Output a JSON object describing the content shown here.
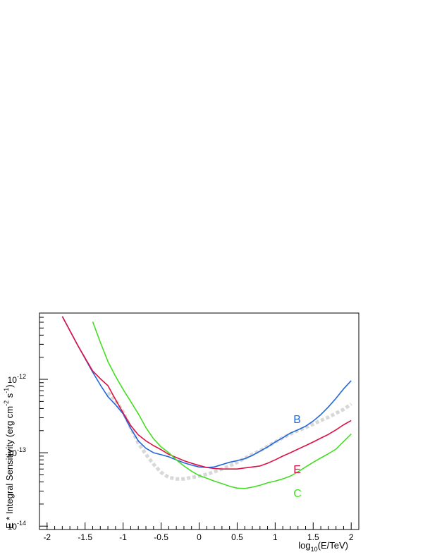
{
  "chart_data": {
    "type": "line",
    "xlabel": "log10(E/TeV)",
    "xlabel_parts": {
      "base": "log",
      "sub": "10",
      "rest": "(E/TeV)"
    },
    "ylabel": "E * Integral Sensitivity (erg cm-2 s-1)",
    "ylabel_parts": {
      "main": "E * Integral Sensitivity (erg cm",
      "sup1": "-2",
      "mid": " s",
      "sup2": "-1",
      "end": ")"
    },
    "xlim": [
      -2.1,
      2.1
    ],
    "ylim": [
      9e-15,
      8e-12
    ],
    "y_scale": "log",
    "grid": false,
    "x_ticks": [
      {
        "v": -2,
        "label": "-2"
      },
      {
        "v": -1.5,
        "label": "-1.5"
      },
      {
        "v": -1,
        "label": "-1"
      },
      {
        "v": -0.5,
        "label": "-0.5"
      },
      {
        "v": 0,
        "label": "0"
      },
      {
        "v": 0.5,
        "label": "0.5"
      },
      {
        "v": 1,
        "label": "1"
      },
      {
        "v": 1.5,
        "label": "1.5"
      },
      {
        "v": 2,
        "label": "2"
      }
    ],
    "y_ticks": [
      {
        "v": 1e-14,
        "base": "10",
        "exp": "-14"
      },
      {
        "v": 1e-13,
        "base": "10",
        "exp": "-13"
      },
      {
        "v": 1e-12,
        "base": "10",
        "exp": "-12"
      }
    ],
    "series": [
      {
        "name": "B",
        "color": "#2266dd",
        "x": [
          -1.8,
          -1.6,
          -1.4,
          -1.3,
          -1.2,
          -1.1,
          -1.0,
          -0.9,
          -0.8,
          -0.7,
          -0.6,
          -0.5,
          -0.4,
          -0.3,
          -0.2,
          -0.1,
          0.0,
          0.1,
          0.2,
          0.3,
          0.4,
          0.5,
          0.6,
          0.7,
          0.8,
          0.9,
          1.0,
          1.1,
          1.2,
          1.3,
          1.4,
          1.5,
          1.6,
          1.7,
          1.8,
          1.9,
          2.0
        ],
        "y": [
          7.2e-12,
          2.95e-12,
          1.25e-12,
          8.4e-13,
          5.8e-13,
          4.5e-13,
          3.4e-13,
          2.15e-13,
          1.45e-13,
          1.15e-13,
          1e-13,
          9.4e-14,
          8.8e-14,
          8e-14,
          7.3e-14,
          6.8e-14,
          6.4e-14,
          6.3e-14,
          6.4e-14,
          6.9e-14,
          7.4e-14,
          7.8e-14,
          8.3e-14,
          9.2e-14,
          1.05e-13,
          1.2e-13,
          1.4e-13,
          1.6e-13,
          1.85e-13,
          2.05e-13,
          2.3e-13,
          2.7e-13,
          3.3e-13,
          4.2e-13,
          5.5e-13,
          7.4e-13,
          9.6e-13
        ]
      },
      {
        "name": "E",
        "color": "#dd1144",
        "x": [
          -1.8,
          -1.6,
          -1.4,
          -1.3,
          -1.2,
          -1.1,
          -1.0,
          -0.9,
          -0.8,
          -0.7,
          -0.6,
          -0.5,
          -0.4,
          -0.3,
          -0.2,
          -0.1,
          0.0,
          0.1,
          0.2,
          0.3,
          0.4,
          0.5,
          0.6,
          0.7,
          0.8,
          0.9,
          1.0,
          1.1,
          1.2,
          1.3,
          1.4,
          1.5,
          1.6,
          1.7,
          1.8,
          1.9,
          2.0
        ],
        "y": [
          7.2e-12,
          2.95e-12,
          1.3e-12,
          1.02e-12,
          8.2e-13,
          5.3e-13,
          3.5e-13,
          2.35e-13,
          1.75e-13,
          1.45e-13,
          1.25e-13,
          1.1e-13,
          9.5e-14,
          8.6e-14,
          7.8e-14,
          7.2e-14,
          6.7e-14,
          6.3e-14,
          6.1e-14,
          6e-14,
          6e-14,
          6e-14,
          6.2e-14,
          6.4e-14,
          6.6e-14,
          7.2e-14,
          8e-14,
          9e-14,
          1e-13,
          1.12e-13,
          1.25e-13,
          1.4e-13,
          1.58e-13,
          1.78e-13,
          2.05e-13,
          2.4e-13,
          2.75e-13
        ]
      },
      {
        "name": "C",
        "color": "#44dd22",
        "x": [
          -1.4,
          -1.3,
          -1.2,
          -1.1,
          -1.0,
          -0.9,
          -0.8,
          -0.7,
          -0.6,
          -0.5,
          -0.4,
          -0.3,
          -0.2,
          -0.1,
          0.0,
          0.1,
          0.2,
          0.3,
          0.4,
          0.5,
          0.6,
          0.7,
          0.8,
          0.9,
          1.0,
          1.1,
          1.2,
          1.3,
          1.4,
          1.5,
          1.6,
          1.7,
          1.8,
          1.9,
          2.0
        ],
        "y": [
          6.1e-12,
          3.2e-12,
          1.75e-12,
          1.1e-12,
          7.3e-13,
          5e-13,
          3.4e-13,
          2.2e-13,
          1.55e-13,
          1.2e-13,
          1e-13,
          8e-14,
          6.6e-14,
          5.6e-14,
          4.9e-14,
          4.5e-14,
          4.1e-14,
          3.8e-14,
          3.5e-14,
          3.3e-14,
          3.25e-14,
          3.4e-14,
          3.6e-14,
          3.9e-14,
          4.1e-14,
          4.4e-14,
          4.8e-14,
          5.5e-14,
          6.4e-14,
          7.4e-14,
          8.5e-14,
          9.7e-14,
          1.12e-13,
          1.42e-13,
          1.8e-13
        ]
      },
      {
        "name": "",
        "color": "#d8d8d8",
        "dashed": true,
        "x": [
          -1.2,
          -1.1,
          -1.0,
          -0.9,
          -0.8,
          -0.7,
          -0.6,
          -0.5,
          -0.4,
          -0.3,
          -0.2,
          -0.1,
          0.0,
          0.1,
          0.2,
          0.3,
          0.4,
          0.5,
          0.6,
          0.7,
          0.8,
          0.9,
          1.0,
          1.1,
          1.2,
          1.3,
          1.4,
          1.5,
          1.6,
          1.7,
          1.8,
          1.9,
          2.0
        ],
        "y": [
          6.6e-13,
          5.2e-13,
          3.6e-13,
          2.2e-13,
          1.35e-13,
          9.5e-14,
          7e-14,
          5.4e-14,
          4.6e-14,
          4.4e-14,
          4.4e-14,
          4.6e-14,
          4.8e-14,
          5.1e-14,
          5.5e-14,
          6e-14,
          6.6e-14,
          7.4e-14,
          8.4e-14,
          9.5e-14,
          1.07e-13,
          1.22e-13,
          1.4e-13,
          1.6e-13,
          1.8e-13,
          2e-13,
          2.2e-13,
          2.45e-13,
          2.75e-13,
          3.05e-13,
          3.45e-13,
          3.9e-13,
          4.6e-13
        ]
      }
    ],
    "annotations": [
      {
        "text": "B",
        "color": "#2266dd",
        "x": 1.24,
        "y": 2.55e-13
      },
      {
        "text": "E",
        "color": "#dd1144",
        "x": 1.24,
        "y": 5.3e-14
      },
      {
        "text": "C",
        "color": "#44dd22",
        "x": 1.24,
        "y": 2.5e-14
      }
    ]
  }
}
